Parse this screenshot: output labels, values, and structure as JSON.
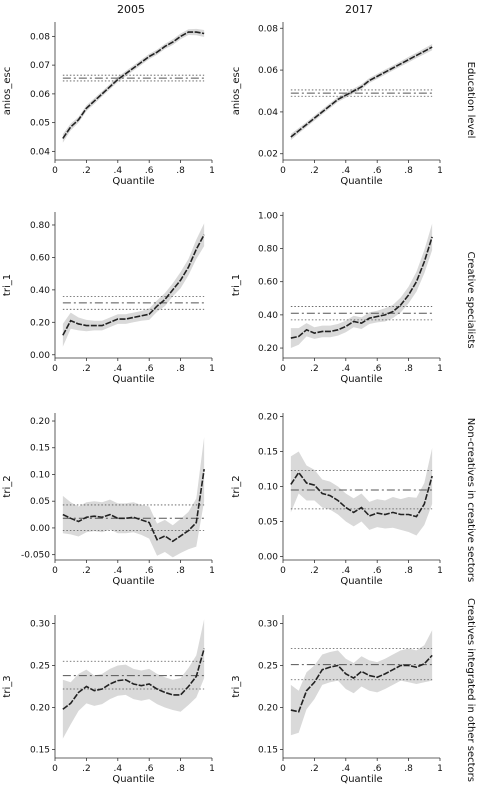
{
  "column_titles": [
    "2005",
    "2017"
  ],
  "row_labels": [
    "Education level",
    "Creative specialists",
    "Non-creatives in creative sectors",
    "Creatives integrated in other sectors"
  ],
  "style": {
    "band_color": "#d9d9d9",
    "line_color": "#222222",
    "ols_color": "#555555",
    "axis_color": "#333333"
  },
  "chart_data": [
    {
      "type": "line",
      "row": 0,
      "col": 0,
      "xlabel": "Quantile",
      "ylabel": "anios_esc",
      "xlim": [
        0,
        1
      ],
      "xticks": [
        0,
        0.2,
        0.4,
        0.6,
        0.8,
        1
      ],
      "xticklabels": [
        "0",
        ".2",
        ".4",
        ".6",
        ".8",
        "1"
      ],
      "ylim": [
        0.037,
        0.085
      ],
      "yticks": [
        0.04,
        0.05,
        0.06,
        0.07,
        0.08
      ],
      "yticklabels": [
        "0.04",
        "0.05",
        "0.06",
        "0.07",
        "0.08"
      ],
      "x": [
        0.05,
        0.1,
        0.15,
        0.2,
        0.25,
        0.3,
        0.35,
        0.4,
        0.45,
        0.5,
        0.55,
        0.6,
        0.65,
        0.7,
        0.75,
        0.8,
        0.85,
        0.9,
        0.95
      ],
      "estimate": [
        0.0445,
        0.0485,
        0.051,
        0.055,
        0.0575,
        0.06,
        0.0625,
        0.065,
        0.067,
        0.069,
        0.071,
        0.073,
        0.0745,
        0.0765,
        0.078,
        0.08,
        0.0815,
        0.0815,
        0.081
      ],
      "ci_halfwidth": [
        0.0015,
        0.0012,
        0.001,
        0.001,
        0.001,
        0.0009,
        0.0009,
        0.0009,
        0.0009,
        0.0009,
        0.0009,
        0.0009,
        0.0009,
        0.0009,
        0.001,
        0.001,
        0.001,
        0.0011,
        0.0012
      ],
      "ols": 0.0655,
      "ols_ci": [
        0.0645,
        0.0665
      ]
    },
    {
      "type": "line",
      "row": 0,
      "col": 1,
      "xlabel": "Quantile",
      "ylabel": "anios_esc",
      "xlim": [
        0,
        1
      ],
      "xticks": [
        0,
        0.2,
        0.4,
        0.6,
        0.8,
        1
      ],
      "xticklabels": [
        "0",
        ".2",
        ".4",
        ".6",
        ".8",
        "1"
      ],
      "ylim": [
        0.017,
        0.083
      ],
      "yticks": [
        0.02,
        0.04,
        0.06,
        0.08
      ],
      "yticklabels": [
        "0.02",
        "0.04",
        "0.06",
        "0.08"
      ],
      "x": [
        0.05,
        0.1,
        0.15,
        0.2,
        0.25,
        0.3,
        0.35,
        0.4,
        0.45,
        0.5,
        0.55,
        0.6,
        0.65,
        0.7,
        0.75,
        0.8,
        0.85,
        0.9,
        0.95
      ],
      "estimate": [
        0.028,
        0.031,
        0.034,
        0.037,
        0.04,
        0.043,
        0.046,
        0.048,
        0.05,
        0.052,
        0.055,
        0.057,
        0.059,
        0.061,
        0.063,
        0.065,
        0.067,
        0.069,
        0.071
      ],
      "ci_halfwidth": [
        0.0015,
        0.0013,
        0.0012,
        0.0012,
        0.0012,
        0.0012,
        0.0012,
        0.0012,
        0.0012,
        0.0012,
        0.0012,
        0.0012,
        0.0012,
        0.0012,
        0.0012,
        0.0013,
        0.0013,
        0.0014,
        0.0015
      ],
      "ols": 0.049,
      "ols_ci": [
        0.0475,
        0.0505
      ]
    },
    {
      "type": "line",
      "row": 1,
      "col": 0,
      "xlabel": "Quantile",
      "ylabel": "tri_1",
      "xlim": [
        0,
        1
      ],
      "xticks": [
        0,
        0.2,
        0.4,
        0.6,
        0.8,
        1
      ],
      "xticklabels": [
        "0",
        ".2",
        ".4",
        ".6",
        ".8",
        "1"
      ],
      "ylim": [
        -0.02,
        0.88
      ],
      "yticks": [
        0,
        0.2,
        0.4,
        0.6,
        0.8
      ],
      "yticklabels": [
        "0.00",
        "0.20",
        "0.40",
        "0.60",
        "0.80"
      ],
      "x": [
        0.05,
        0.1,
        0.15,
        0.2,
        0.25,
        0.3,
        0.35,
        0.4,
        0.45,
        0.5,
        0.55,
        0.6,
        0.65,
        0.7,
        0.75,
        0.8,
        0.85,
        0.9,
        0.95
      ],
      "estimate": [
        0.12,
        0.21,
        0.19,
        0.18,
        0.18,
        0.18,
        0.2,
        0.22,
        0.22,
        0.23,
        0.24,
        0.25,
        0.3,
        0.34,
        0.4,
        0.46,
        0.54,
        0.65,
        0.74
      ],
      "ci_halfwidth": [
        0.07,
        0.05,
        0.04,
        0.035,
        0.03,
        0.03,
        0.03,
        0.03,
        0.03,
        0.03,
        0.03,
        0.035,
        0.035,
        0.04,
        0.04,
        0.05,
        0.05,
        0.06,
        0.07
      ],
      "ols": 0.32,
      "ols_ci": [
        0.28,
        0.36
      ]
    },
    {
      "type": "line",
      "row": 1,
      "col": 1,
      "xlabel": "Quantile",
      "ylabel": "tri_1",
      "xlim": [
        0,
        1
      ],
      "xticks": [
        0,
        0.2,
        0.4,
        0.6,
        0.8,
        1
      ],
      "xticklabels": [
        "0",
        ".2",
        ".4",
        ".6",
        ".8",
        "1"
      ],
      "ylim": [
        0.14,
        1.02
      ],
      "yticks": [
        0.2,
        0.4,
        0.6,
        0.8,
        1.0
      ],
      "yticklabels": [
        "0.20",
        "0.40",
        "0.60",
        "0.80",
        "1.00"
      ],
      "x": [
        0.05,
        0.1,
        0.15,
        0.2,
        0.25,
        0.3,
        0.35,
        0.4,
        0.45,
        0.5,
        0.55,
        0.6,
        0.65,
        0.7,
        0.75,
        0.8,
        0.85,
        0.9,
        0.95
      ],
      "estimate": [
        0.26,
        0.27,
        0.31,
        0.29,
        0.3,
        0.3,
        0.31,
        0.33,
        0.36,
        0.35,
        0.38,
        0.39,
        0.4,
        0.42,
        0.46,
        0.52,
        0.6,
        0.72,
        0.87
      ],
      "ci_halfwidth": [
        0.06,
        0.05,
        0.04,
        0.035,
        0.035,
        0.035,
        0.035,
        0.035,
        0.035,
        0.035,
        0.035,
        0.035,
        0.04,
        0.04,
        0.045,
        0.05,
        0.06,
        0.07,
        0.08
      ],
      "ols": 0.41,
      "ols_ci": [
        0.37,
        0.45
      ]
    },
    {
      "type": "line",
      "row": 2,
      "col": 0,
      "xlabel": "Quantile",
      "ylabel": "tri_2",
      "xlim": [
        0,
        1
      ],
      "xticks": [
        0,
        0.2,
        0.4,
        0.6,
        0.8,
        1
      ],
      "xticklabels": [
        "0",
        ".2",
        ".4",
        ".6",
        ".8",
        "1"
      ],
      "ylim": [
        -0.06,
        0.215
      ],
      "yticks": [
        -0.05,
        0,
        0.05,
        0.1,
        0.15,
        0.2
      ],
      "yticklabels": [
        "-0.050",
        "0.00",
        "0.05",
        "0.10",
        "0.15",
        "0.20"
      ],
      "x": [
        0.05,
        0.1,
        0.15,
        0.2,
        0.25,
        0.3,
        0.35,
        0.4,
        0.45,
        0.5,
        0.55,
        0.6,
        0.65,
        0.7,
        0.75,
        0.8,
        0.85,
        0.9,
        0.95
      ],
      "estimate": [
        0.025,
        0.018,
        0.012,
        0.02,
        0.022,
        0.02,
        0.025,
        0.018,
        0.018,
        0.02,
        0.015,
        0.01,
        -0.022,
        -0.015,
        -0.025,
        -0.015,
        -0.005,
        0.01,
        0.11
      ],
      "ci_halfwidth": [
        0.035,
        0.03,
        0.028,
        0.028,
        0.028,
        0.028,
        0.028,
        0.028,
        0.028,
        0.028,
        0.028,
        0.03,
        0.03,
        0.03,
        0.03,
        0.032,
        0.035,
        0.045,
        0.06
      ],
      "ols": 0.018,
      "ols_ci": [
        -0.005,
        0.043
      ]
    },
    {
      "type": "line",
      "row": 2,
      "col": 1,
      "xlabel": "Quantile",
      "ylabel": "tri_2",
      "xlim": [
        0,
        1
      ],
      "xticks": [
        0,
        0.2,
        0.4,
        0.6,
        0.8,
        1
      ],
      "xticklabels": [
        "0",
        ".2",
        ".4",
        ".6",
        ".8",
        "1"
      ],
      "ylim": [
        -0.005,
        0.205
      ],
      "yticks": [
        0,
        0.05,
        0.1,
        0.15,
        0.2
      ],
      "yticklabels": [
        "0.00",
        "0.05",
        "0.10",
        "0.15",
        "0.20"
      ],
      "x": [
        0.05,
        0.1,
        0.15,
        0.2,
        0.25,
        0.3,
        0.35,
        0.4,
        0.45,
        0.5,
        0.55,
        0.6,
        0.65,
        0.7,
        0.75,
        0.8,
        0.85,
        0.9,
        0.95
      ],
      "estimate": [
        0.103,
        0.12,
        0.105,
        0.102,
        0.09,
        0.087,
        0.08,
        0.07,
        0.063,
        0.07,
        0.058,
        0.062,
        0.06,
        0.063,
        0.06,
        0.06,
        0.057,
        0.075,
        0.115
      ],
      "ci_halfwidth": [
        0.04,
        0.03,
        0.025,
        0.022,
        0.02,
        0.02,
        0.02,
        0.02,
        0.02,
        0.02,
        0.02,
        0.02,
        0.02,
        0.022,
        0.022,
        0.025,
        0.027,
        0.03,
        0.04
      ],
      "ols": 0.095,
      "ols_ci": [
        0.068,
        0.123
      ]
    },
    {
      "type": "line",
      "row": 3,
      "col": 0,
      "xlabel": "Quantile",
      "ylabel": "tri_3",
      "xlim": [
        0,
        1
      ],
      "xticks": [
        0,
        0.2,
        0.4,
        0.6,
        0.8,
        1
      ],
      "xticklabels": [
        "0",
        ".2",
        ".4",
        ".6",
        ".8",
        "1"
      ],
      "ylim": [
        0.14,
        0.31
      ],
      "yticks": [
        0.15,
        0.2,
        0.25,
        0.3
      ],
      "yticklabels": [
        "0.15",
        "0.20",
        "0.25",
        "0.30"
      ],
      "x": [
        0.05,
        0.1,
        0.15,
        0.2,
        0.25,
        0.3,
        0.35,
        0.4,
        0.45,
        0.5,
        0.55,
        0.6,
        0.65,
        0.7,
        0.75,
        0.8,
        0.85,
        0.9,
        0.95
      ],
      "estimate": [
        0.198,
        0.205,
        0.218,
        0.225,
        0.22,
        0.222,
        0.228,
        0.232,
        0.233,
        0.228,
        0.226,
        0.228,
        0.222,
        0.218,
        0.215,
        0.215,
        0.225,
        0.237,
        0.27
      ],
      "ci_halfwidth": [
        0.035,
        0.025,
        0.022,
        0.02,
        0.018,
        0.018,
        0.018,
        0.018,
        0.018,
        0.018,
        0.018,
        0.018,
        0.018,
        0.018,
        0.018,
        0.02,
        0.022,
        0.025,
        0.035
      ],
      "ols": 0.238,
      "ols_ci": [
        0.222,
        0.255
      ]
    },
    {
      "type": "line",
      "row": 3,
      "col": 1,
      "xlabel": "Quantile",
      "ylabel": "tri_3",
      "xlim": [
        0,
        1
      ],
      "xticks": [
        0,
        0.2,
        0.4,
        0.6,
        0.8,
        1
      ],
      "xticklabels": [
        "0",
        ".2",
        ".4",
        ".6",
        ".8",
        "1"
      ],
      "ylim": [
        0.14,
        0.31
      ],
      "yticks": [
        0.15,
        0.2,
        0.25,
        0.3
      ],
      "yticklabels": [
        "0.15",
        "0.20",
        "0.25",
        "0.30"
      ],
      "x": [
        0.05,
        0.1,
        0.15,
        0.2,
        0.25,
        0.3,
        0.35,
        0.4,
        0.45,
        0.5,
        0.55,
        0.6,
        0.65,
        0.7,
        0.75,
        0.8,
        0.85,
        0.9,
        0.95
      ],
      "estimate": [
        0.197,
        0.195,
        0.22,
        0.23,
        0.245,
        0.248,
        0.25,
        0.24,
        0.235,
        0.243,
        0.238,
        0.236,
        0.24,
        0.245,
        0.25,
        0.25,
        0.248,
        0.252,
        0.262
      ],
      "ci_halfwidth": [
        0.03,
        0.025,
        0.022,
        0.02,
        0.018,
        0.018,
        0.018,
        0.018,
        0.018,
        0.018,
        0.018,
        0.018,
        0.018,
        0.018,
        0.018,
        0.02,
        0.02,
        0.022,
        0.03
      ],
      "ols": 0.251,
      "ols_ci": [
        0.233,
        0.27
      ]
    }
  ]
}
